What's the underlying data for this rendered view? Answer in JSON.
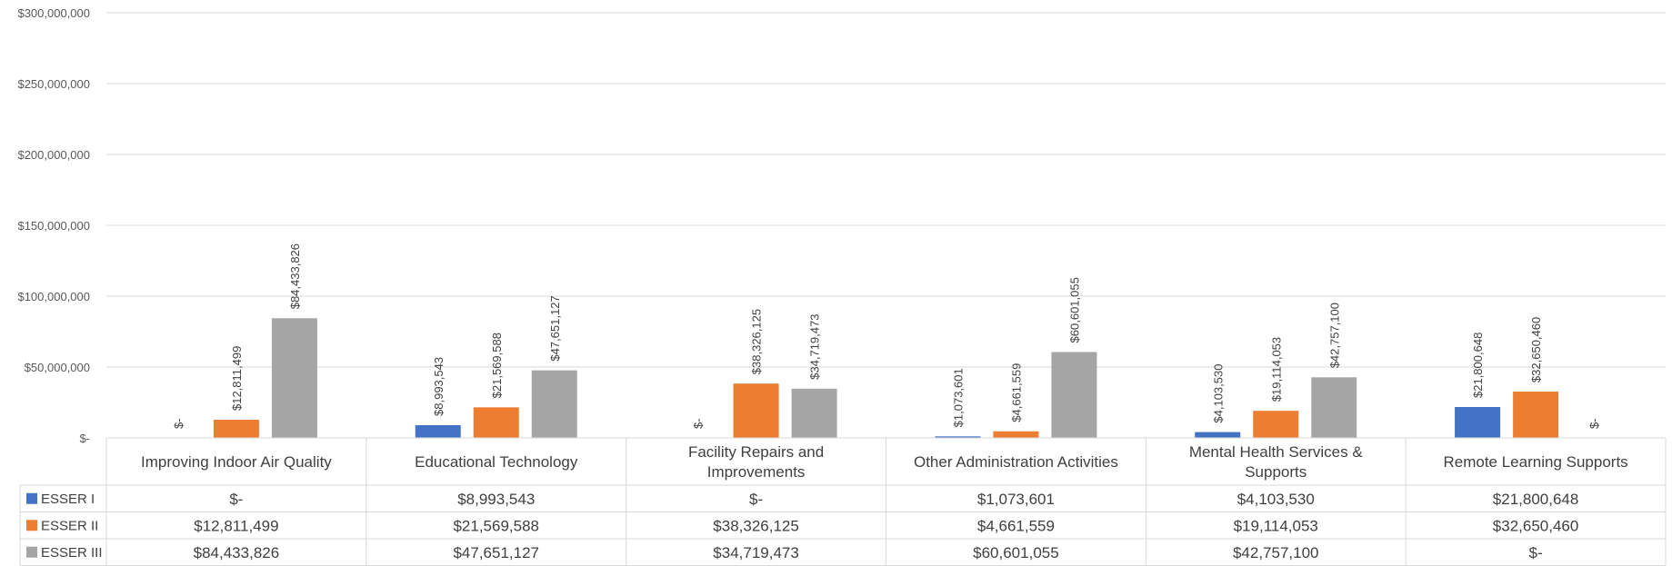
{
  "chart_data": {
    "type": "bar",
    "categories": [
      [
        "Improving Indoor Air Quality"
      ],
      [
        "Educational Technology"
      ],
      [
        "Facility Repairs and",
        "Improvements"
      ],
      [
        "Other Administration Activities"
      ],
      [
        "Mental Health Services &",
        "Supports"
      ],
      [
        "Remote Learning Supports"
      ]
    ],
    "series": [
      {
        "name": "ESSER I",
        "color": "#4472C4",
        "values": [
          0,
          8993543,
          0,
          1073601,
          4103530,
          21800648
        ],
        "labels": [
          "$-",
          "$8,993,543",
          "$-",
          "$1,073,601",
          "$4,103,530",
          "$21,800,648"
        ]
      },
      {
        "name": "ESSER II",
        "color": "#ED7D31",
        "values": [
          12811499,
          21569588,
          38326125,
          4661559,
          19114053,
          32650460
        ],
        "labels": [
          "$12,811,499",
          "$21,569,588",
          "$38,326,125",
          "$4,661,559",
          "$19,114,053",
          "$32,650,460"
        ]
      },
      {
        "name": "ESSER III",
        "color": "#A5A5A5",
        "values": [
          84433826,
          47651127,
          34719473,
          60601055,
          42757100,
          0
        ],
        "labels": [
          "$84,433,826",
          "$47,651,127",
          "$34,719,473",
          "$60,601,055",
          "$42,757,100",
          "$-"
        ]
      }
    ],
    "ylim": [
      0,
      300000000
    ],
    "yticks": [
      0,
      50000000,
      100000000,
      150000000,
      200000000,
      250000000,
      300000000
    ],
    "ytick_labels": [
      "$-",
      "$50,000,000",
      "$100,000,000",
      "$150,000,000",
      "$200,000,000",
      "$250,000,000",
      "$300,000,000"
    ],
    "grid": true,
    "legend": "data-table",
    "colors": {
      "grid": "#D9D9D9",
      "table_border": "#D9D9D9",
      "text": "#404040"
    }
  }
}
